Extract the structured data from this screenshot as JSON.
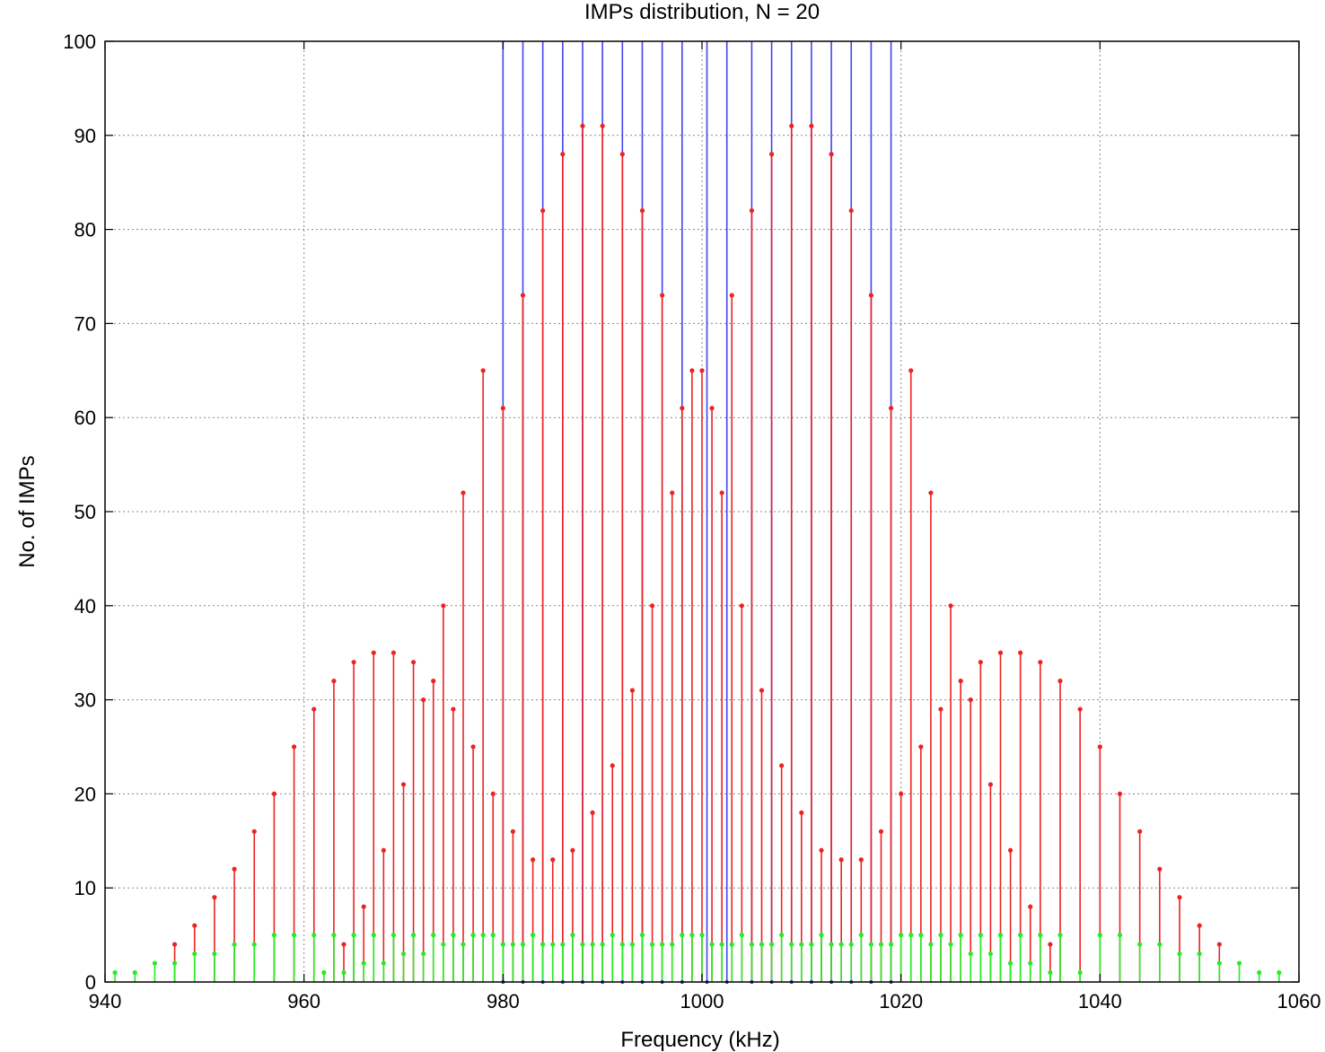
{
  "chart_data": {
    "type": "stem",
    "title": "IMPs distribution, N = 20",
    "xlabel": "Frequency (kHz)",
    "ylabel": "No. of IMPs",
    "xlim": [
      940,
      1060
    ],
    "ylim": [
      0,
      100
    ],
    "xticks": [
      940,
      960,
      980,
      1000,
      1020,
      1040,
      1060
    ],
    "yticks": [
      0,
      10,
      20,
      30,
      40,
      50,
      60,
      70,
      80,
      90,
      100
    ],
    "grid": true,
    "carriers_khz": [
      980,
      982,
      984,
      986,
      988,
      990,
      992,
      994,
      996,
      998,
      1000.5,
      1002.5,
      1005,
      1007,
      1009,
      1011,
      1013,
      1015,
      1017,
      1019
    ],
    "series": [
      {
        "color": "#4444ee",
        "x": [
          980,
          982,
          984,
          986,
          988,
          990,
          992,
          994,
          996,
          998,
          1000.5,
          1002.5,
          1005,
          1007,
          1009,
          1011,
          1013,
          1015,
          1017,
          1019
        ],
        "values": [
          100,
          100,
          100,
          100,
          100,
          100,
          100,
          100,
          100,
          100,
          100,
          100,
          100,
          100,
          100,
          100,
          100,
          100,
          100,
          100
        ]
      },
      {
        "color": "#ee2222",
        "x": [
          947,
          949,
          951,
          953,
          955,
          957,
          959,
          961,
          963,
          964,
          965,
          966,
          967,
          968,
          969,
          970,
          971,
          972,
          973,
          974,
          975,
          976,
          977,
          978,
          979,
          980,
          981,
          982,
          983,
          984,
          985,
          986,
          987,
          988,
          989,
          990,
          991,
          992,
          993,
          994,
          995,
          996,
          997,
          998,
          999,
          1000,
          1001,
          1002,
          1003,
          1004,
          1005,
          1006,
          1007,
          1008,
          1009,
          1010,
          1011,
          1012,
          1013,
          1014,
          1015,
          1016,
          1017,
          1018,
          1019,
          1020,
          1021,
          1022,
          1023,
          1024,
          1025,
          1026,
          1027,
          1028,
          1029,
          1030,
          1031,
          1032,
          1033,
          1034,
          1035,
          1036,
          1038,
          1040,
          1042,
          1044,
          1046,
          1048,
          1050,
          1052
        ],
        "values": [
          4,
          6,
          9,
          12,
          16,
          20,
          25,
          29,
          32,
          4,
          34,
          8,
          35,
          14,
          35,
          21,
          34,
          30,
          32,
          40,
          29,
          52,
          25,
          65,
          20,
          61,
          16,
          73,
          13,
          82,
          13,
          88,
          14,
          91,
          18,
          91,
          23,
          88,
          31,
          82,
          40,
          73,
          52,
          61,
          65,
          65,
          61,
          52,
          73,
          40,
          82,
          31,
          88,
          23,
          91,
          18,
          91,
          14,
          88,
          13,
          82,
          13,
          73,
          16,
          61,
          20,
          65,
          25,
          52,
          29,
          40,
          32,
          30,
          34,
          21,
          35,
          14,
          35,
          8,
          34,
          4,
          32,
          29,
          25,
          20,
          16,
          12,
          9,
          6,
          4
        ]
      },
      {
        "color": "#22ee22",
        "x": [
          941,
          943,
          945,
          947,
          949,
          951,
          953,
          955,
          957,
          959,
          961,
          962,
          963,
          964,
          965,
          966,
          967,
          968,
          969,
          970,
          971,
          972,
          973,
          974,
          975,
          976,
          977,
          978,
          979,
          980,
          981,
          982,
          983,
          984,
          985,
          986,
          987,
          988,
          989,
          990,
          991,
          992,
          993,
          994,
          995,
          996,
          997,
          998,
          999,
          1000,
          1001,
          1002,
          1003,
          1004,
          1005,
          1006,
          1007,
          1008,
          1009,
          1010,
          1011,
          1012,
          1013,
          1014,
          1015,
          1016,
          1017,
          1018,
          1019,
          1020,
          1021,
          1022,
          1023,
          1024,
          1025,
          1026,
          1027,
          1028,
          1029,
          1030,
          1031,
          1032,
          1033,
          1034,
          1035,
          1036,
          1038,
          1040,
          1042,
          1044,
          1046,
          1048,
          1050,
          1052,
          1054,
          1056,
          1058
        ],
        "values": [
          1,
          1,
          2,
          2,
          3,
          3,
          4,
          4,
          5,
          5,
          5,
          1,
          5,
          1,
          5,
          2,
          5,
          2,
          5,
          3,
          5,
          3,
          5,
          4,
          5,
          4,
          5,
          5,
          5,
          4,
          4,
          4,
          5,
          4,
          4,
          4,
          5,
          4,
          4,
          4,
          5,
          4,
          4,
          5,
          4,
          4,
          4,
          5,
          5,
          5,
          4,
          4,
          4,
          5,
          4,
          4,
          4,
          5,
          4,
          4,
          4,
          5,
          4,
          4,
          4,
          5,
          4,
          4,
          4,
          5,
          5,
          5,
          4,
          5,
          4,
          5,
          3,
          5,
          3,
          5,
          2,
          5,
          2,
          5,
          1,
          5,
          1,
          5,
          5,
          4,
          4,
          3,
          3,
          2,
          2,
          1,
          1
        ]
      }
    ]
  }
}
